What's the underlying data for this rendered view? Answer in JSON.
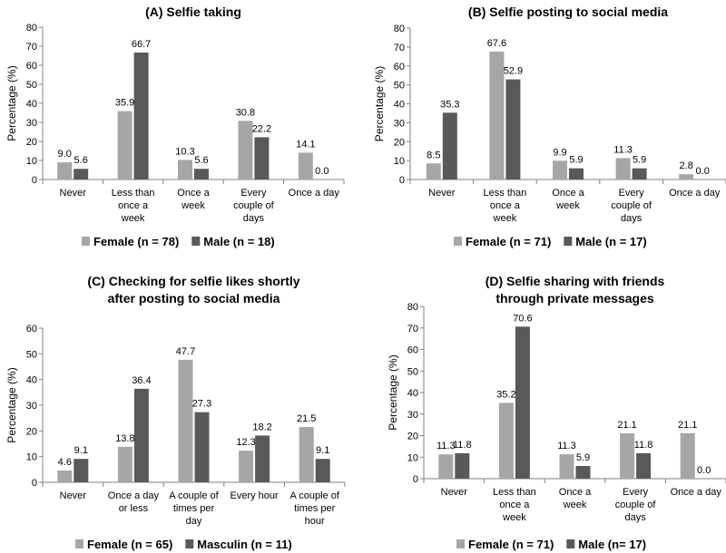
{
  "colors": {
    "female": "#a6a6a6",
    "male": "#595959",
    "axis": "#808080"
  },
  "chart_data": [
    {
      "type": "bar",
      "title": "(A) Selfie taking",
      "ylabel": "Percentage (%)",
      "ylim": [
        0,
        80
      ],
      "yticks": [
        0,
        10,
        20,
        30,
        40,
        50,
        60,
        70,
        80
      ],
      "categories": [
        "Never",
        "Less than once a week",
        "Once a week",
        "Every couple of days",
        "Once a day"
      ],
      "category_lines": [
        [
          "Never"
        ],
        [
          "Less than",
          "once a",
          "week"
        ],
        [
          "Once a",
          "week"
        ],
        [
          "Every",
          "couple of",
          "days"
        ],
        [
          "Once a day"
        ]
      ],
      "series": [
        {
          "name": "Female (n = 78)",
          "values": [
            9.0,
            35.9,
            10.3,
            30.8,
            14.1
          ]
        },
        {
          "name": "Male (n = 18)",
          "values": [
            5.6,
            66.7,
            5.6,
            22.2,
            0.0
          ]
        }
      ],
      "legend": "bottom"
    },
    {
      "type": "bar",
      "title": "(B) Selfie posting to social media",
      "ylabel": "Percentage (%)",
      "ylim": [
        0,
        80
      ],
      "yticks": [
        0,
        10,
        20,
        30,
        40,
        50,
        60,
        70,
        80
      ],
      "categories": [
        "Never",
        "Less than once a week",
        "Once a week",
        "Every couple of days",
        "Once a day"
      ],
      "category_lines": [
        [
          "Never"
        ],
        [
          "Less than",
          "once a",
          "week"
        ],
        [
          "Once a",
          "week"
        ],
        [
          "Every",
          "couple of",
          "days"
        ],
        [
          "Once a day"
        ]
      ],
      "series": [
        {
          "name": "Female (n = 71)",
          "values": [
            8.5,
            67.6,
            9.9,
            11.3,
            2.8
          ]
        },
        {
          "name": "Male (n = 17)",
          "values": [
            35.3,
            52.9,
            5.9,
            5.9,
            0.0
          ]
        }
      ],
      "legend": "bottom"
    },
    {
      "type": "bar",
      "title": "(C) Checking for selfie likes shortly after posting to social media",
      "title_lines": [
        "(C) Checking for selfie likes shortly",
        "after posting to social media"
      ],
      "ylabel": "Percentage (%)",
      "ylim": [
        0,
        60
      ],
      "yticks": [
        0,
        10,
        20,
        30,
        40,
        50,
        60
      ],
      "categories": [
        "Never",
        "Once a day or less",
        "A couple of times per day",
        "Every hour",
        "A couple of times per hour"
      ],
      "category_lines": [
        [
          "Never"
        ],
        [
          "Once a day",
          "or less"
        ],
        [
          "A couple of",
          "times per",
          "day"
        ],
        [
          "Every hour"
        ],
        [
          "A couple of",
          "times per",
          "hour"
        ]
      ],
      "series": [
        {
          "name": "Female (n = 65)",
          "values": [
            4.6,
            13.8,
            47.7,
            12.3,
            21.5
          ]
        },
        {
          "name": "Masculin (n = 11)",
          "values": [
            9.1,
            36.4,
            27.3,
            18.2,
            9.1
          ]
        }
      ],
      "legend": "bottom"
    },
    {
      "type": "bar",
      "title": "(D) Selfie sharing with friends through private messages",
      "title_lines": [
        "(D) Selfie sharing with friends",
        "through private messages"
      ],
      "ylabel": "Percentage (%)",
      "ylim": [
        0,
        80
      ],
      "yticks": [
        0,
        10,
        20,
        30,
        40,
        50,
        60,
        70,
        80
      ],
      "categories": [
        "Never",
        "Less than once a week",
        "Once a week",
        "Every couple of days",
        "Once a day"
      ],
      "category_lines": [
        [
          "Never"
        ],
        [
          "Less than",
          "once a",
          "week"
        ],
        [
          "Once a",
          "week"
        ],
        [
          "Every",
          "couple of",
          "days"
        ],
        [
          "Once a day"
        ]
      ],
      "series": [
        {
          "name": "Female (n = 71)",
          "values": [
            11.3,
            35.2,
            11.3,
            21.1,
            21.1
          ]
        },
        {
          "name": "Male (n= 17)",
          "values": [
            11.8,
            70.6,
            5.9,
            11.8,
            0.0
          ]
        }
      ],
      "legend": "bottom"
    }
  ]
}
